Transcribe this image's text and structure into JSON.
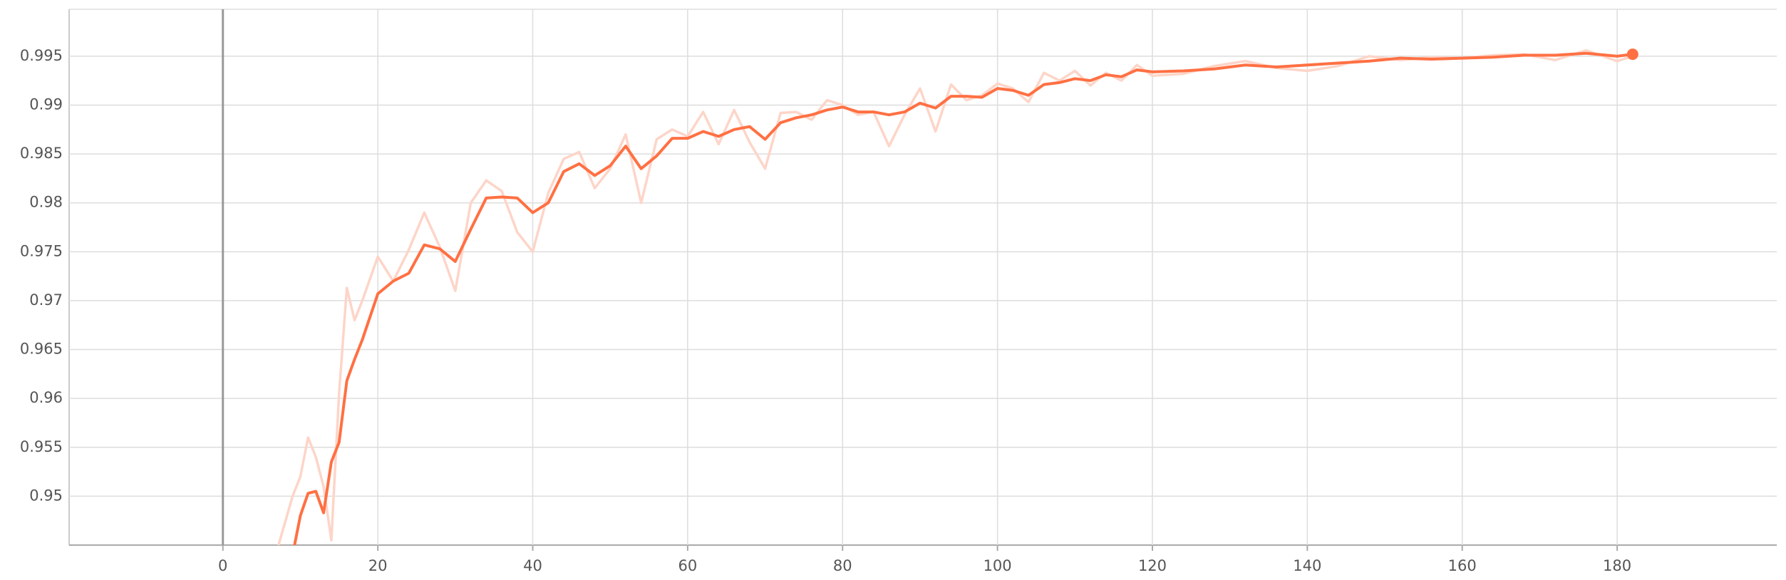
{
  "chart_data": {
    "type": "line",
    "x": [
      7,
      9,
      10,
      11,
      12,
      13,
      14,
      15,
      16,
      17,
      18,
      20,
      22,
      24,
      26,
      28,
      30,
      32,
      34,
      36,
      38,
      40,
      42,
      44,
      46,
      48,
      50,
      52,
      54,
      56,
      58,
      60,
      62,
      64,
      66,
      68,
      70,
      72,
      74,
      76,
      78,
      80,
      82,
      84,
      86,
      88,
      90,
      92,
      94,
      96,
      98,
      100,
      102,
      104,
      106,
      108,
      110,
      112,
      114,
      116,
      118,
      120,
      124,
      128,
      132,
      136,
      140,
      144,
      148,
      152,
      156,
      160,
      164,
      168,
      172,
      176,
      180,
      182
    ],
    "series": [
      {
        "color": "#fdd5c8",
        "values": [
          0.9445,
          0.95,
          0.952,
          0.956,
          0.954,
          0.951,
          0.9455,
          0.9605,
          0.9713,
          0.968,
          0.97,
          0.9745,
          0.972,
          0.9752,
          0.979,
          0.9755,
          0.971,
          0.98,
          0.9823,
          0.9812,
          0.977,
          0.975,
          0.981,
          0.9845,
          0.9852,
          0.9815,
          0.9835,
          0.987,
          0.98,
          0.9865,
          0.9875,
          0.9868,
          0.9893,
          0.986,
          0.9895,
          0.9862,
          0.9835,
          0.9892,
          0.9893,
          0.9885,
          0.9905,
          0.99,
          0.989,
          0.9893,
          0.9858,
          0.989,
          0.9917,
          0.9873,
          0.9921,
          0.9905,
          0.991,
          0.9922,
          0.9917,
          0.9903,
          0.9933,
          0.9925,
          0.9935,
          0.992,
          0.9933,
          0.9925,
          0.9941,
          0.993,
          0.9932,
          0.994,
          0.9945,
          0.9938,
          0.9935,
          0.994,
          0.995,
          0.9946,
          0.9949,
          0.9948,
          0.9951,
          0.9952,
          0.9946,
          0.9956,
          0.9945,
          0.995
        ]
      },
      {
        "color": "#ff7043",
        "values": [
          null,
          0.944,
          0.948,
          0.9503,
          0.9505,
          0.9483,
          0.9535,
          0.9555,
          0.9618,
          0.964,
          0.966,
          0.9707,
          0.972,
          0.9728,
          0.9757,
          0.9753,
          0.974,
          0.9773,
          0.9805,
          0.9806,
          0.9805,
          0.979,
          0.98,
          0.9832,
          0.984,
          0.9828,
          0.9838,
          0.9858,
          0.9835,
          0.9848,
          0.9866,
          0.9866,
          0.9873,
          0.9868,
          0.9875,
          0.9878,
          0.9865,
          0.9882,
          0.9887,
          0.989,
          0.9895,
          0.9898,
          0.9893,
          0.9893,
          0.989,
          0.9893,
          0.9902,
          0.9897,
          0.9909,
          0.9909,
          0.9908,
          0.9917,
          0.9915,
          0.991,
          0.9921,
          0.9923,
          0.9927,
          0.9925,
          0.9931,
          0.9929,
          0.9936,
          0.9934,
          0.9935,
          0.9937,
          0.9941,
          0.9939,
          0.9941,
          0.9943,
          0.9945,
          0.9948,
          0.9947,
          0.9948,
          0.9949,
          0.9951,
          0.9951,
          0.9953,
          0.995,
          0.9952
        ]
      }
    ],
    "xlim": [
      -19.85,
      200.6
    ],
    "xticks": [
      0,
      20,
      40,
      60,
      80,
      100,
      120,
      140,
      160,
      180
    ],
    "ylim": [
      0.945,
      0.9998
    ],
    "yticks": [
      0.95,
      0.955,
      0.96,
      0.965,
      0.97,
      0.975,
      0.98,
      0.985,
      0.99,
      0.995
    ],
    "grid": true
  }
}
